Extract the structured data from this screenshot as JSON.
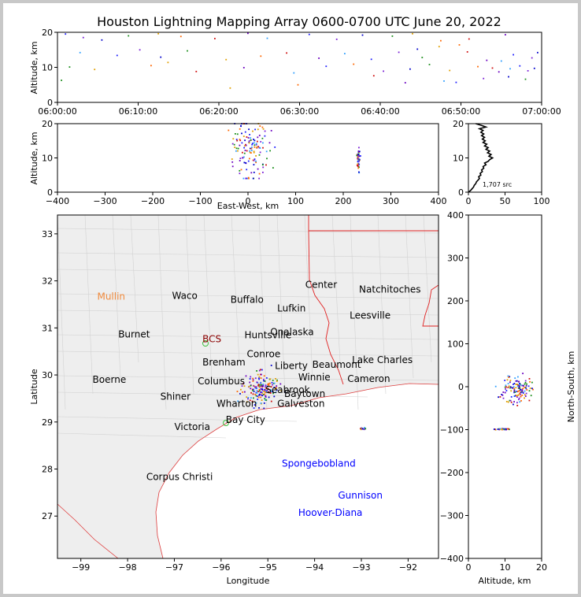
{
  "title": "Houston Lightning Mapping Array 0600-0700 UTC June 20, 2022",
  "colors": {
    "background": "#c8c8c8",
    "state_border": "#e02020",
    "coast": "#e04040",
    "county": "#cfcfcf"
  },
  "chart_data": [
    {
      "id": "time_altitude",
      "type": "scatter",
      "ylabel": "Altitude, km",
      "xlabel": "",
      "ylim": [
        0,
        20
      ],
      "yticks": [
        0,
        10,
        20
      ],
      "xticks": [
        "06:00:00",
        "06:10:00",
        "06:20:00",
        "06:30:00",
        "06:40:00",
        "06:50:00",
        "07:00:00"
      ],
      "x_range_minutes": [
        0,
        60
      ],
      "points": [
        [
          1.0,
          19.5
        ],
        [
          3.2,
          18.5
        ],
        [
          5.5,
          17.8
        ],
        [
          8.8,
          19.0
        ],
        [
          12.5,
          19.6
        ],
        [
          15.3,
          18.8
        ],
        [
          19.5,
          18.2
        ],
        [
          23.6,
          19.7
        ],
        [
          26.0,
          18.3
        ],
        [
          31.2,
          19.4
        ],
        [
          34.6,
          18.0
        ],
        [
          37.8,
          19.2
        ],
        [
          41.5,
          18.9
        ],
        [
          44.0,
          19.6
        ],
        [
          47.5,
          17.6
        ],
        [
          51.0,
          18.1
        ],
        [
          55.5,
          19.3
        ],
        [
          2.8,
          14.2
        ],
        [
          7.4,
          13.4
        ],
        [
          10.2,
          15.0
        ],
        [
          12.8,
          12.9
        ],
        [
          16.1,
          14.7
        ],
        [
          20.9,
          12.2
        ],
        [
          25.2,
          13.2
        ],
        [
          28.4,
          14.1
        ],
        [
          32.4,
          12.6
        ],
        [
          35.6,
          13.9
        ],
        [
          38.9,
          12.3
        ],
        [
          42.3,
          14.3
        ],
        [
          44.6,
          15.2
        ],
        [
          45.2,
          12.8
        ],
        [
          47.3,
          15.9
        ],
        [
          49.8,
          16.4
        ],
        [
          50.8,
          14.4
        ],
        [
          53.2,
          12.0
        ],
        [
          55.0,
          11.8
        ],
        [
          56.5,
          13.6
        ],
        [
          58.8,
          12.7
        ],
        [
          59.5,
          14.2
        ],
        [
          1.5,
          10.1
        ],
        [
          4.6,
          9.4
        ],
        [
          11.6,
          10.5
        ],
        [
          17.2,
          8.8
        ],
        [
          23.1,
          9.9
        ],
        [
          29.3,
          8.4
        ],
        [
          33.3,
          10.3
        ],
        [
          40.4,
          8.9
        ],
        [
          43.7,
          9.5
        ],
        [
          46.1,
          10.8
        ],
        [
          48.6,
          9.1
        ],
        [
          52.1,
          10.2
        ],
        [
          53.9,
          9.8
        ],
        [
          54.7,
          8.7
        ],
        [
          56.1,
          9.6
        ],
        [
          57.3,
          10.4
        ],
        [
          58.3,
          9.0
        ],
        [
          59.1,
          9.7
        ],
        [
          0.5,
          6.3
        ],
        [
          21.4,
          4.1
        ],
        [
          29.8,
          5.0
        ],
        [
          39.2,
          7.6
        ],
        [
          43.1,
          5.6
        ],
        [
          47.9,
          6.1
        ],
        [
          49.4,
          5.7
        ],
        [
          52.8,
          6.8
        ],
        [
          55.9,
          7.3
        ],
        [
          58.0,
          6.6
        ],
        [
          13.7,
          11.4
        ],
        [
          36.7,
          10.9
        ]
      ]
    },
    {
      "id": "eastwest_altitude",
      "type": "scatter",
      "xlabel": "East-West, km",
      "ylabel": "Altitude, km",
      "xlim": [
        -400,
        400
      ],
      "ylim": [
        0,
        20
      ],
      "xticks": [
        -400,
        -300,
        -200,
        -100,
        0,
        100,
        200,
        300,
        400
      ],
      "yticks": [
        0,
        10,
        20
      ],
      "clusters": [
        {
          "name": "houston",
          "center": [
            5,
            12
          ],
          "spread": [
            35,
            8
          ],
          "count": 140
        },
        {
          "name": "gulf",
          "center": [
            232,
            9.5
          ],
          "spread": [
            3,
            3.2
          ],
          "count": 45
        }
      ]
    },
    {
      "id": "altitude_histogram",
      "type": "line",
      "xlim": [
        0,
        100
      ],
      "ylim": [
        0,
        20
      ],
      "xticks": [
        0,
        50,
        100
      ],
      "yticks": [
        0,
        10,
        20
      ],
      "annotation": "1,707 src",
      "profile": [
        [
          0,
          0
        ],
        [
          3,
          0.5
        ],
        [
          5,
          1
        ],
        [
          7,
          1.5
        ],
        [
          8,
          2
        ],
        [
          10,
          2.5
        ],
        [
          11,
          3
        ],
        [
          13,
          3.5
        ],
        [
          15,
          4
        ],
        [
          14,
          4.5
        ],
        [
          17,
          5
        ],
        [
          16,
          5.5
        ],
        [
          19,
          6
        ],
        [
          18,
          6.5
        ],
        [
          21,
          7
        ],
        [
          20,
          7.5
        ],
        [
          24,
          8
        ],
        [
          22,
          8.5
        ],
        [
          27,
          9
        ],
        [
          29,
          9.5
        ],
        [
          33,
          10
        ],
        [
          28,
          10.5
        ],
        [
          31,
          11
        ],
        [
          26,
          11.5
        ],
        [
          29,
          12
        ],
        [
          24,
          12.5
        ],
        [
          27,
          13
        ],
        [
          22,
          13.5
        ],
        [
          25,
          14
        ],
        [
          20,
          14.5
        ],
        [
          23,
          15
        ],
        [
          19,
          15.5
        ],
        [
          22,
          16
        ],
        [
          18,
          16.5
        ],
        [
          21,
          17
        ],
        [
          17,
          17.5
        ],
        [
          20,
          18
        ],
        [
          15,
          18.5
        ],
        [
          24,
          19
        ],
        [
          18,
          19.5
        ],
        [
          10,
          20
        ]
      ]
    },
    {
      "id": "plan_view_map",
      "type": "scatter",
      "xlabel": "Longitude",
      "ylabel": "Latitude",
      "xlim": [
        -99.5,
        -91.35
      ],
      "ylim": [
        26.1,
        33.4
      ],
      "xticks": [
        -99,
        -98,
        -97,
        -96,
        -95,
        -94,
        -93,
        -92
      ],
      "yticks": [
        27,
        28,
        29,
        30,
        31,
        32,
        33
      ],
      "clusters": [
        {
          "name": "houston",
          "center": [
            -95.15,
            29.7
          ],
          "spread": [
            0.4,
            0.35
          ],
          "count": 170
        },
        {
          "name": "gulf",
          "center": [
            -92.97,
            28.86
          ],
          "spread": [
            0.05,
            0.02
          ],
          "count": 14
        }
      ],
      "cities": [
        {
          "name": "Mullin",
          "lon": -98.65,
          "lat": 31.6,
          "color": "#f08a3c"
        },
        {
          "name": "Waco",
          "lon": -97.05,
          "lat": 31.62,
          "color": "#000000"
        },
        {
          "name": "Buffalo",
          "lon": -95.8,
          "lat": 31.53,
          "color": "#000000"
        },
        {
          "name": "Center",
          "lon": -94.2,
          "lat": 31.85,
          "color": "#000000"
        },
        {
          "name": "Natchitoches",
          "lon": -93.05,
          "lat": 31.75,
          "color": "#000000"
        },
        {
          "name": "Lufkin",
          "lon": -94.8,
          "lat": 31.35,
          "color": "#000000"
        },
        {
          "name": "Leesville",
          "lon": -93.25,
          "lat": 31.2,
          "color": "#000000"
        },
        {
          "name": "Burnet",
          "lon": -98.2,
          "lat": 30.8,
          "color": "#000000"
        },
        {
          "name": "BCS",
          "lon": -96.4,
          "lat": 30.7,
          "color": "#8b0000"
        },
        {
          "name": "Huntsville",
          "lon": -95.5,
          "lat": 30.78,
          "color": "#000000"
        },
        {
          "name": "Onalaska",
          "lon": -94.95,
          "lat": 30.85,
          "color": "#000000"
        },
        {
          "name": "Brenham",
          "lon": -96.4,
          "lat": 30.2,
          "color": "#000000"
        },
        {
          "name": "Conroe",
          "lon": -95.45,
          "lat": 30.38,
          "color": "#000000"
        },
        {
          "name": "Liberty",
          "lon": -94.85,
          "lat": 30.13,
          "color": "#000000"
        },
        {
          "name": "Beaumont",
          "lon": -94.05,
          "lat": 30.15,
          "color": "#000000"
        },
        {
          "name": "Lake Charles",
          "lon": -93.2,
          "lat": 30.25,
          "color": "#000000"
        },
        {
          "name": "Winnie",
          "lon": -94.35,
          "lat": 29.88,
          "color": "#000000"
        },
        {
          "name": "Cameron",
          "lon": -93.3,
          "lat": 29.85,
          "color": "#000000"
        },
        {
          "name": "Boerne",
          "lon": -98.75,
          "lat": 29.83,
          "color": "#000000"
        },
        {
          "name": "Columbus",
          "lon": -96.5,
          "lat": 29.8,
          "color": "#000000"
        },
        {
          "name": "Seabrook",
          "lon": -95.05,
          "lat": 29.62,
          "color": "#000000"
        },
        {
          "name": "Baytown",
          "lon": -94.65,
          "lat": 29.53,
          "color": "#000000"
        },
        {
          "name": "Galveston",
          "lon": -94.8,
          "lat": 29.32,
          "color": "#000000"
        },
        {
          "name": "Shiner",
          "lon": -97.3,
          "lat": 29.47,
          "color": "#000000"
        },
        {
          "name": "Wharton",
          "lon": -96.1,
          "lat": 29.32,
          "color": "#000000"
        },
        {
          "name": "Bay City",
          "lon": -95.9,
          "lat": 28.98,
          "color": "#000000"
        },
        {
          "name": "Victoria",
          "lon": -97.0,
          "lat": 28.83,
          "color": "#000000"
        },
        {
          "name": "Corpus Christi",
          "lon": -97.6,
          "lat": 27.77,
          "color": "#000000"
        },
        {
          "name": "Spongebobland",
          "lon": -94.7,
          "lat": 28.05,
          "color": "#0000ff"
        },
        {
          "name": "Gunnison",
          "lon": -93.5,
          "lat": 27.37,
          "color": "#0000ff"
        },
        {
          "name": "Hoover-Diana",
          "lon": -94.35,
          "lat": 27.0,
          "color": "#0000ff"
        }
      ]
    },
    {
      "id": "altitude_northsouth",
      "type": "scatter",
      "xlabel": "Altitude, km",
      "ylabel": "North-South, km",
      "xlim": [
        0,
        20
      ],
      "ylim": [
        -400,
        400
      ],
      "xticks": [
        0,
        10,
        20
      ],
      "yticks": [
        -400,
        -300,
        -200,
        -100,
        0,
        100,
        200,
        300,
        400
      ],
      "clusters": [
        {
          "name": "houston",
          "center": [
            13,
            -5
          ],
          "spread": [
            4,
            35
          ],
          "count": 130
        },
        {
          "name": "gulf",
          "center": [
            9.5,
            -99
          ],
          "spread": [
            2.5,
            1.5
          ],
          "count": 30
        }
      ]
    }
  ]
}
